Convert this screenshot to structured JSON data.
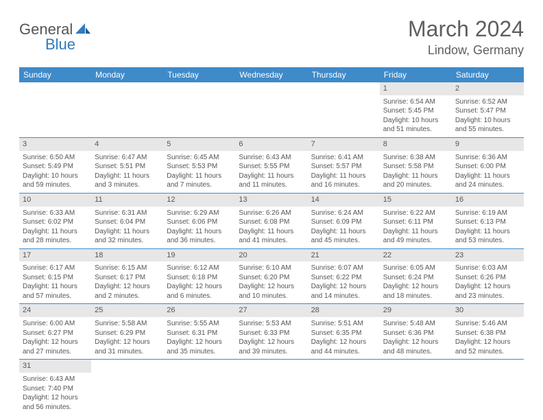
{
  "logo": {
    "word1": "General",
    "word2": "Blue"
  },
  "title": {
    "month": "March 2024",
    "location": "Lindow, Germany"
  },
  "colors": {
    "header_bg": "#3f8ac9",
    "header_text": "#ffffff",
    "daybar_bg": "#e7e7e7",
    "text": "#555555",
    "rule": "#3f8ac9",
    "logo_blue": "#2f7bbf"
  },
  "day_headers": [
    "Sunday",
    "Monday",
    "Tuesday",
    "Wednesday",
    "Thursday",
    "Friday",
    "Saturday"
  ],
  "weeks": [
    [
      {
        "blank": true
      },
      {
        "blank": true
      },
      {
        "blank": true
      },
      {
        "blank": true
      },
      {
        "blank": true
      },
      {
        "n": "1",
        "sunrise": "Sunrise: 6:54 AM",
        "sunset": "Sunset: 5:45 PM",
        "day1": "Daylight: 10 hours",
        "day2": "and 51 minutes."
      },
      {
        "n": "2",
        "sunrise": "Sunrise: 6:52 AM",
        "sunset": "Sunset: 5:47 PM",
        "day1": "Daylight: 10 hours",
        "day2": "and 55 minutes."
      }
    ],
    [
      {
        "n": "3",
        "sunrise": "Sunrise: 6:50 AM",
        "sunset": "Sunset: 5:49 PM",
        "day1": "Daylight: 10 hours",
        "day2": "and 59 minutes."
      },
      {
        "n": "4",
        "sunrise": "Sunrise: 6:47 AM",
        "sunset": "Sunset: 5:51 PM",
        "day1": "Daylight: 11 hours",
        "day2": "and 3 minutes."
      },
      {
        "n": "5",
        "sunrise": "Sunrise: 6:45 AM",
        "sunset": "Sunset: 5:53 PM",
        "day1": "Daylight: 11 hours",
        "day2": "and 7 minutes."
      },
      {
        "n": "6",
        "sunrise": "Sunrise: 6:43 AM",
        "sunset": "Sunset: 5:55 PM",
        "day1": "Daylight: 11 hours",
        "day2": "and 11 minutes."
      },
      {
        "n": "7",
        "sunrise": "Sunrise: 6:41 AM",
        "sunset": "Sunset: 5:57 PM",
        "day1": "Daylight: 11 hours",
        "day2": "and 16 minutes."
      },
      {
        "n": "8",
        "sunrise": "Sunrise: 6:38 AM",
        "sunset": "Sunset: 5:58 PM",
        "day1": "Daylight: 11 hours",
        "day2": "and 20 minutes."
      },
      {
        "n": "9",
        "sunrise": "Sunrise: 6:36 AM",
        "sunset": "Sunset: 6:00 PM",
        "day1": "Daylight: 11 hours",
        "day2": "and 24 minutes."
      }
    ],
    [
      {
        "n": "10",
        "sunrise": "Sunrise: 6:33 AM",
        "sunset": "Sunset: 6:02 PM",
        "day1": "Daylight: 11 hours",
        "day2": "and 28 minutes."
      },
      {
        "n": "11",
        "sunrise": "Sunrise: 6:31 AM",
        "sunset": "Sunset: 6:04 PM",
        "day1": "Daylight: 11 hours",
        "day2": "and 32 minutes."
      },
      {
        "n": "12",
        "sunrise": "Sunrise: 6:29 AM",
        "sunset": "Sunset: 6:06 PM",
        "day1": "Daylight: 11 hours",
        "day2": "and 36 minutes."
      },
      {
        "n": "13",
        "sunrise": "Sunrise: 6:26 AM",
        "sunset": "Sunset: 6:08 PM",
        "day1": "Daylight: 11 hours",
        "day2": "and 41 minutes."
      },
      {
        "n": "14",
        "sunrise": "Sunrise: 6:24 AM",
        "sunset": "Sunset: 6:09 PM",
        "day1": "Daylight: 11 hours",
        "day2": "and 45 minutes."
      },
      {
        "n": "15",
        "sunrise": "Sunrise: 6:22 AM",
        "sunset": "Sunset: 6:11 PM",
        "day1": "Daylight: 11 hours",
        "day2": "and 49 minutes."
      },
      {
        "n": "16",
        "sunrise": "Sunrise: 6:19 AM",
        "sunset": "Sunset: 6:13 PM",
        "day1": "Daylight: 11 hours",
        "day2": "and 53 minutes."
      }
    ],
    [
      {
        "n": "17",
        "sunrise": "Sunrise: 6:17 AM",
        "sunset": "Sunset: 6:15 PM",
        "day1": "Daylight: 11 hours",
        "day2": "and 57 minutes."
      },
      {
        "n": "18",
        "sunrise": "Sunrise: 6:15 AM",
        "sunset": "Sunset: 6:17 PM",
        "day1": "Daylight: 12 hours",
        "day2": "and 2 minutes."
      },
      {
        "n": "19",
        "sunrise": "Sunrise: 6:12 AM",
        "sunset": "Sunset: 6:18 PM",
        "day1": "Daylight: 12 hours",
        "day2": "and 6 minutes."
      },
      {
        "n": "20",
        "sunrise": "Sunrise: 6:10 AM",
        "sunset": "Sunset: 6:20 PM",
        "day1": "Daylight: 12 hours",
        "day2": "and 10 minutes."
      },
      {
        "n": "21",
        "sunrise": "Sunrise: 6:07 AM",
        "sunset": "Sunset: 6:22 PM",
        "day1": "Daylight: 12 hours",
        "day2": "and 14 minutes."
      },
      {
        "n": "22",
        "sunrise": "Sunrise: 6:05 AM",
        "sunset": "Sunset: 6:24 PM",
        "day1": "Daylight: 12 hours",
        "day2": "and 18 minutes."
      },
      {
        "n": "23",
        "sunrise": "Sunrise: 6:03 AM",
        "sunset": "Sunset: 6:26 PM",
        "day1": "Daylight: 12 hours",
        "day2": "and 23 minutes."
      }
    ],
    [
      {
        "n": "24",
        "sunrise": "Sunrise: 6:00 AM",
        "sunset": "Sunset: 6:27 PM",
        "day1": "Daylight: 12 hours",
        "day2": "and 27 minutes."
      },
      {
        "n": "25",
        "sunrise": "Sunrise: 5:58 AM",
        "sunset": "Sunset: 6:29 PM",
        "day1": "Daylight: 12 hours",
        "day2": "and 31 minutes."
      },
      {
        "n": "26",
        "sunrise": "Sunrise: 5:55 AM",
        "sunset": "Sunset: 6:31 PM",
        "day1": "Daylight: 12 hours",
        "day2": "and 35 minutes."
      },
      {
        "n": "27",
        "sunrise": "Sunrise: 5:53 AM",
        "sunset": "Sunset: 6:33 PM",
        "day1": "Daylight: 12 hours",
        "day2": "and 39 minutes."
      },
      {
        "n": "28",
        "sunrise": "Sunrise: 5:51 AM",
        "sunset": "Sunset: 6:35 PM",
        "day1": "Daylight: 12 hours",
        "day2": "and 44 minutes."
      },
      {
        "n": "29",
        "sunrise": "Sunrise: 5:48 AM",
        "sunset": "Sunset: 6:36 PM",
        "day1": "Daylight: 12 hours",
        "day2": "and 48 minutes."
      },
      {
        "n": "30",
        "sunrise": "Sunrise: 5:46 AM",
        "sunset": "Sunset: 6:38 PM",
        "day1": "Daylight: 12 hours",
        "day2": "and 52 minutes."
      }
    ],
    [
      {
        "n": "31",
        "sunrise": "Sunrise: 6:43 AM",
        "sunset": "Sunset: 7:40 PM",
        "day1": "Daylight: 12 hours",
        "day2": "and 56 minutes."
      },
      {
        "blank": true
      },
      {
        "blank": true
      },
      {
        "blank": true
      },
      {
        "blank": true
      },
      {
        "blank": true
      },
      {
        "blank": true
      }
    ]
  ]
}
